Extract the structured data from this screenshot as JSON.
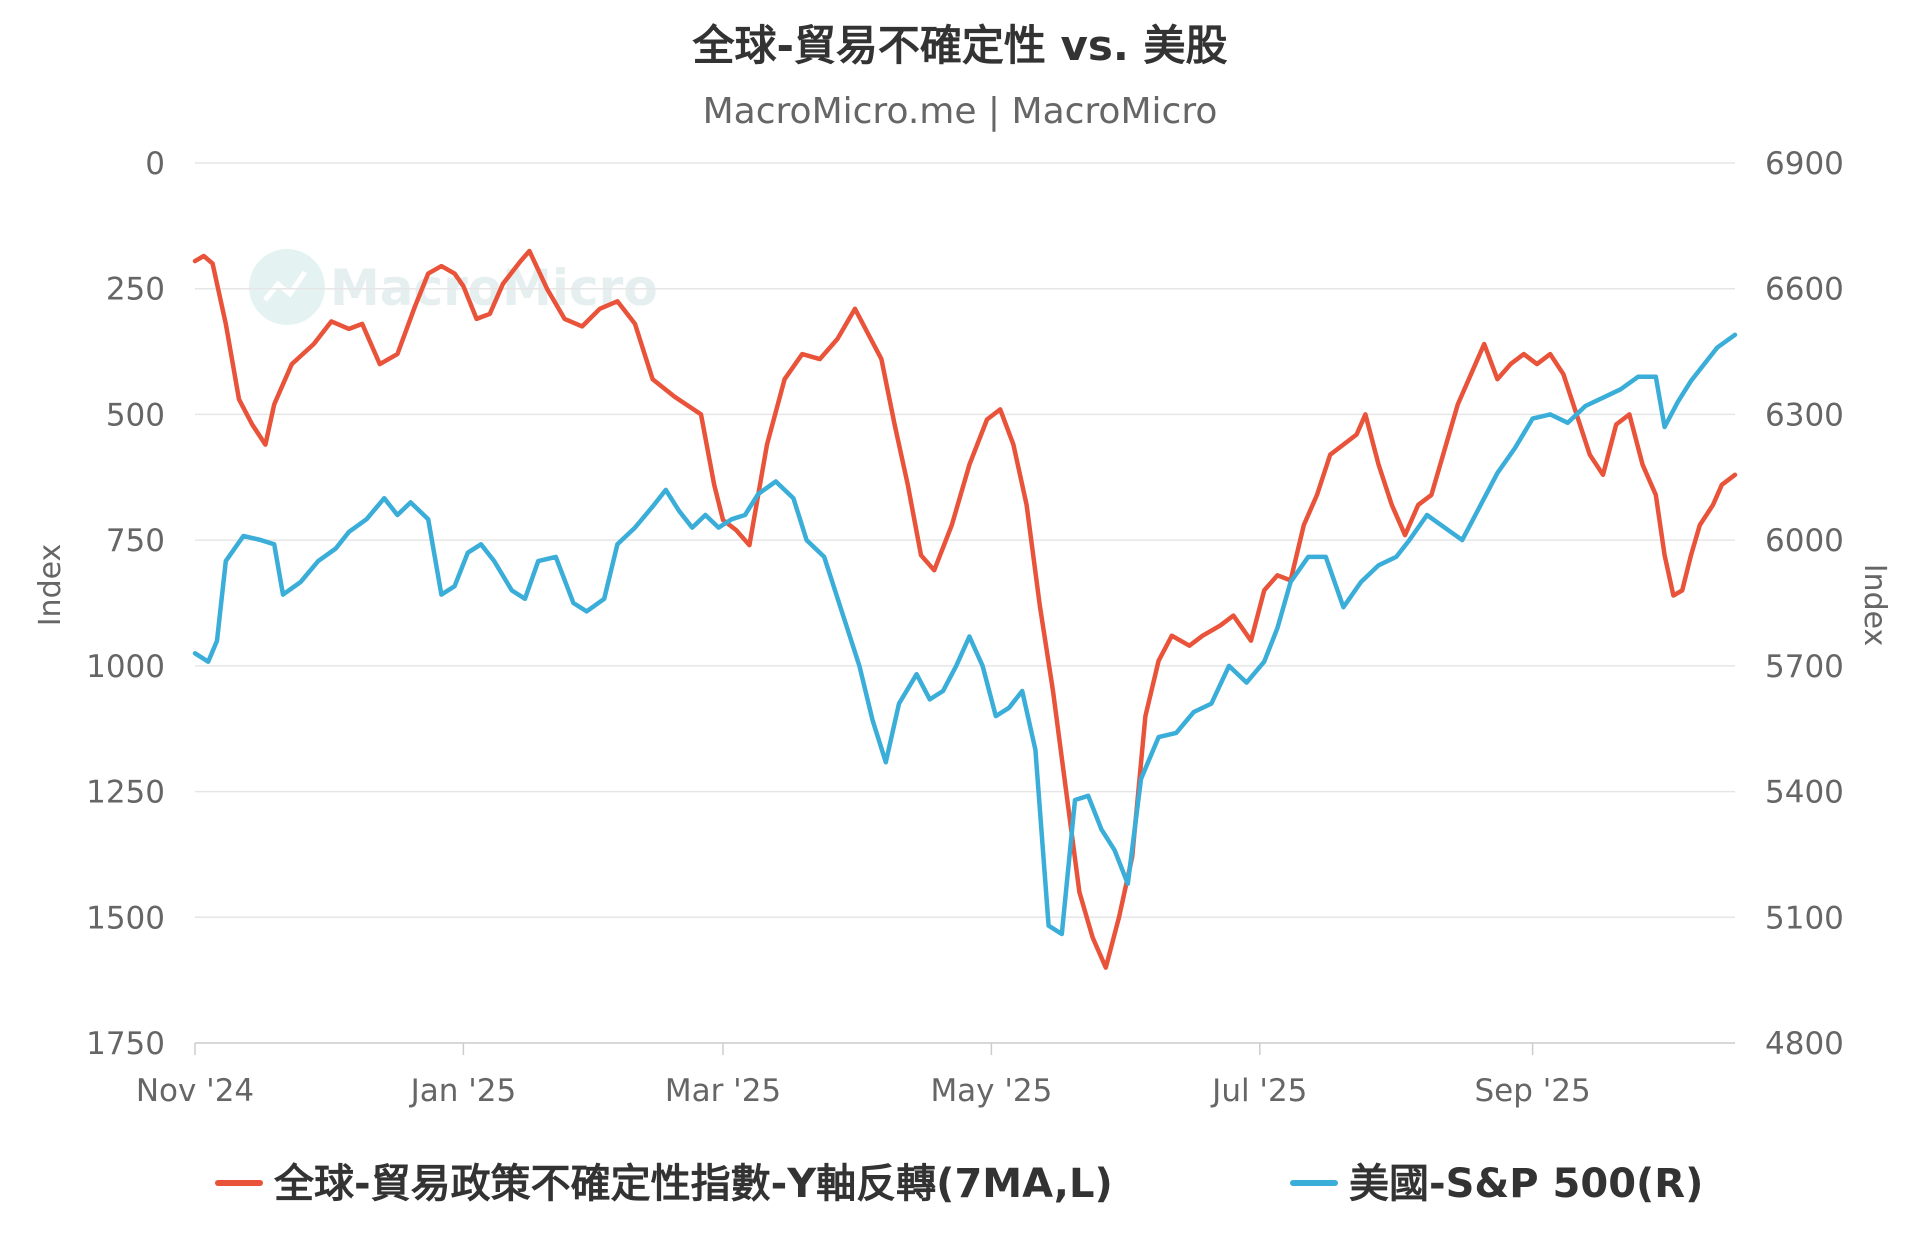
{
  "chart_data": {
    "type": "line",
    "title": "全球-貿易不確定性 vs. 美股",
    "subtitle": "MacroMicro.me | MacroMicro",
    "watermark": "MacroMicro",
    "x_tick_labels": [
      "Nov '24",
      "Jan '25",
      "Mar '25",
      "May '25",
      "Jul '25",
      "Sep '25"
    ],
    "x_tick_dates": [
      "2024-11-01",
      "2025-01-01",
      "2025-03-01",
      "2025-05-01",
      "2025-07-01",
      "2025-09-01"
    ],
    "xlim": [
      "2024-11-01",
      "2025-10-17"
    ],
    "grid": true,
    "legend_position": "bottom",
    "y_left": {
      "label": "Index",
      "reversed": true,
      "ylim": [
        0,
        1750
      ],
      "ticks": [
        "0",
        "250",
        "500",
        "750",
        "1000",
        "1250",
        "1500",
        "1750"
      ]
    },
    "y_right": {
      "label": "Index",
      "ylim": [
        4800,
        6900
      ],
      "ticks": [
        "6900",
        "6600",
        "6300",
        "6000",
        "5700",
        "5400",
        "5100",
        "4800"
      ]
    },
    "series": [
      {
        "name": "全球-貿易政策不確定性指數-Y軸反轉(7MA,L)",
        "axis": "left",
        "color": "#e8533a",
        "points": [
          [
            "2024-11-01",
            195
          ],
          [
            "2024-11-03",
            185
          ],
          [
            "2024-11-05",
            200
          ],
          [
            "2024-11-08",
            320
          ],
          [
            "2024-11-11",
            470
          ],
          [
            "2024-11-14",
            520
          ],
          [
            "2024-11-17",
            560
          ],
          [
            "2024-11-19",
            480
          ],
          [
            "2024-11-23",
            400
          ],
          [
            "2024-11-28",
            360
          ],
          [
            "2024-12-02",
            315
          ],
          [
            "2024-12-06",
            330
          ],
          [
            "2024-12-09",
            320
          ],
          [
            "2024-12-13",
            400
          ],
          [
            "2024-12-17",
            380
          ],
          [
            "2024-12-21",
            285
          ],
          [
            "2024-12-24",
            220
          ],
          [
            "2024-12-27",
            205
          ],
          [
            "2024-12-30",
            220
          ],
          [
            "2025-01-01",
            245
          ],
          [
            "2025-01-04",
            310
          ],
          [
            "2025-01-07",
            300
          ],
          [
            "2025-01-10",
            240
          ],
          [
            "2025-01-14",
            195
          ],
          [
            "2025-01-16",
            175
          ],
          [
            "2025-01-20",
            250
          ],
          [
            "2025-01-24",
            310
          ],
          [
            "2025-01-28",
            325
          ],
          [
            "2025-02-01",
            290
          ],
          [
            "2025-02-05",
            275
          ],
          [
            "2025-02-09",
            320
          ],
          [
            "2025-02-13",
            430
          ],
          [
            "2025-02-18",
            465
          ],
          [
            "2025-02-24",
            500
          ],
          [
            "2025-02-27",
            640
          ],
          [
            "2025-03-01",
            710
          ],
          [
            "2025-03-04",
            730
          ],
          [
            "2025-03-07",
            760
          ],
          [
            "2025-03-11",
            560
          ],
          [
            "2025-03-15",
            430
          ],
          [
            "2025-03-19",
            380
          ],
          [
            "2025-03-23",
            390
          ],
          [
            "2025-03-27",
            350
          ],
          [
            "2025-03-31",
            290
          ],
          [
            "2025-04-03",
            340
          ],
          [
            "2025-04-06",
            390
          ],
          [
            "2025-04-09",
            520
          ],
          [
            "2025-04-12",
            640
          ],
          [
            "2025-04-15",
            780
          ],
          [
            "2025-04-18",
            810
          ],
          [
            "2025-04-22",
            720
          ],
          [
            "2025-04-26",
            600
          ],
          [
            "2025-04-30",
            510
          ],
          [
            "2025-05-03",
            490
          ],
          [
            "2025-05-06",
            560
          ],
          [
            "2025-05-09",
            680
          ],
          [
            "2025-05-12",
            880
          ],
          [
            "2025-05-15",
            1050
          ],
          [
            "2025-05-18",
            1250
          ],
          [
            "2025-05-21",
            1450
          ],
          [
            "2025-05-24",
            1540
          ],
          [
            "2025-05-27",
            1600
          ],
          [
            "2025-05-30",
            1500
          ],
          [
            "2025-06-02",
            1380
          ],
          [
            "2025-06-05",
            1100
          ],
          [
            "2025-06-08",
            990
          ],
          [
            "2025-06-11",
            940
          ],
          [
            "2025-06-15",
            960
          ],
          [
            "2025-06-18",
            940
          ],
          [
            "2025-06-22",
            920
          ],
          [
            "2025-06-25",
            900
          ],
          [
            "2025-06-29",
            950
          ],
          [
            "2025-07-02",
            850
          ],
          [
            "2025-07-05",
            820
          ],
          [
            "2025-07-08",
            830
          ],
          [
            "2025-07-11",
            720
          ],
          [
            "2025-07-14",
            660
          ],
          [
            "2025-07-17",
            580
          ],
          [
            "2025-07-20",
            560
          ],
          [
            "2025-07-23",
            540
          ],
          [
            "2025-07-25",
            500
          ],
          [
            "2025-07-28",
            600
          ],
          [
            "2025-07-31",
            680
          ],
          [
            "2025-08-03",
            740
          ],
          [
            "2025-08-06",
            680
          ],
          [
            "2025-08-09",
            660
          ],
          [
            "2025-08-12",
            570
          ],
          [
            "2025-08-15",
            480
          ],
          [
            "2025-08-18",
            420
          ],
          [
            "2025-08-21",
            360
          ],
          [
            "2025-08-24",
            430
          ],
          [
            "2025-08-27",
            400
          ],
          [
            "2025-08-30",
            380
          ],
          [
            "2025-09-02",
            400
          ],
          [
            "2025-09-05",
            380
          ],
          [
            "2025-09-08",
            420
          ],
          [
            "2025-09-11",
            500
          ],
          [
            "2025-09-14",
            580
          ],
          [
            "2025-09-17",
            620
          ],
          [
            "2025-09-20",
            520
          ],
          [
            "2025-09-23",
            500
          ],
          [
            "2025-09-26",
            600
          ],
          [
            "2025-09-29",
            660
          ],
          [
            "2025-10-01",
            780
          ],
          [
            "2025-10-03",
            860
          ],
          [
            "2025-10-05",
            850
          ],
          [
            "2025-10-07",
            780
          ],
          [
            "2025-10-09",
            720
          ],
          [
            "2025-10-12",
            680
          ],
          [
            "2025-10-14",
            640
          ],
          [
            "2025-10-17",
            620
          ]
        ]
      },
      {
        "name": "美國-S&P 500(R)",
        "axis": "right",
        "color": "#3aaed8",
        "points": [
          [
            "2024-11-01",
            5730
          ],
          [
            "2024-11-04",
            5710
          ],
          [
            "2024-11-06",
            5760
          ],
          [
            "2024-11-08",
            5950
          ],
          [
            "2024-11-12",
            6010
          ],
          [
            "2024-11-16",
            6000
          ],
          [
            "2024-11-19",
            5990
          ],
          [
            "2024-11-21",
            5870
          ],
          [
            "2024-11-25",
            5900
          ],
          [
            "2024-11-29",
            5950
          ],
          [
            "2024-12-03",
            5980
          ],
          [
            "2024-12-06",
            6020
          ],
          [
            "2024-12-10",
            6050
          ],
          [
            "2024-12-14",
            6100
          ],
          [
            "2024-12-17",
            6060
          ],
          [
            "2024-12-20",
            6090
          ],
          [
            "2024-12-24",
            6050
          ],
          [
            "2024-12-27",
            5870
          ],
          [
            "2024-12-30",
            5890
          ],
          [
            "2025-01-02",
            5970
          ],
          [
            "2025-01-05",
            5990
          ],
          [
            "2025-01-08",
            5950
          ],
          [
            "2025-01-12",
            5880
          ],
          [
            "2025-01-15",
            5860
          ],
          [
            "2025-01-18",
            5950
          ],
          [
            "2025-01-22",
            5960
          ],
          [
            "2025-01-26",
            5850
          ],
          [
            "2025-01-29",
            5830
          ],
          [
            "2025-02-02",
            5860
          ],
          [
            "2025-02-05",
            5990
          ],
          [
            "2025-02-09",
            6030
          ],
          [
            "2025-02-13",
            6080
          ],
          [
            "2025-02-16",
            6120
          ],
          [
            "2025-02-19",
            6070
          ],
          [
            "2025-02-22",
            6030
          ],
          [
            "2025-02-25",
            6060
          ],
          [
            "2025-02-28",
            6030
          ],
          [
            "2025-03-03",
            6050
          ],
          [
            "2025-03-06",
            6060
          ],
          [
            "2025-03-09",
            6110
          ],
          [
            "2025-03-13",
            6140
          ],
          [
            "2025-03-17",
            6100
          ],
          [
            "2025-03-20",
            6000
          ],
          [
            "2025-03-24",
            5960
          ],
          [
            "2025-03-28",
            5830
          ],
          [
            "2025-04-01",
            5700
          ],
          [
            "2025-04-04",
            5570
          ],
          [
            "2025-04-07",
            5470
          ],
          [
            "2025-04-10",
            5610
          ],
          [
            "2025-04-14",
            5680
          ],
          [
            "2025-04-17",
            5620
          ],
          [
            "2025-04-20",
            5640
          ],
          [
            "2025-04-23",
            5700
          ],
          [
            "2025-04-26",
            5770
          ],
          [
            "2025-04-29",
            5700
          ],
          [
            "2025-05-02",
            5580
          ],
          [
            "2025-05-05",
            5600
          ],
          [
            "2025-05-08",
            5640
          ],
          [
            "2025-05-11",
            5500
          ],
          [
            "2025-05-14",
            5080
          ],
          [
            "2025-05-17",
            5060
          ],
          [
            "2025-05-20",
            5380
          ],
          [
            "2025-05-23",
            5390
          ],
          [
            "2025-05-26",
            5310
          ],
          [
            "2025-05-29",
            5260
          ],
          [
            "2025-06-01",
            5180
          ],
          [
            "2025-06-04",
            5430
          ],
          [
            "2025-06-08",
            5530
          ],
          [
            "2025-06-12",
            5540
          ],
          [
            "2025-06-16",
            5590
          ],
          [
            "2025-06-20",
            5610
          ],
          [
            "2025-06-24",
            5700
          ],
          [
            "2025-06-28",
            5660
          ],
          [
            "2025-07-02",
            5710
          ],
          [
            "2025-07-05",
            5790
          ],
          [
            "2025-07-08",
            5900
          ],
          [
            "2025-07-12",
            5960
          ],
          [
            "2025-07-16",
            5960
          ],
          [
            "2025-07-20",
            5840
          ],
          [
            "2025-07-24",
            5900
          ],
          [
            "2025-07-28",
            5940
          ],
          [
            "2025-08-01",
            5960
          ],
          [
            "2025-08-04",
            6000
          ],
          [
            "2025-08-08",
            6060
          ],
          [
            "2025-08-12",
            6030
          ],
          [
            "2025-08-16",
            6000
          ],
          [
            "2025-08-20",
            6080
          ],
          [
            "2025-08-24",
            6160
          ],
          [
            "2025-08-28",
            6220
          ],
          [
            "2025-09-01",
            6290
          ],
          [
            "2025-09-05",
            6300
          ],
          [
            "2025-09-09",
            6280
          ],
          [
            "2025-09-13",
            6320
          ],
          [
            "2025-09-17",
            6340
          ],
          [
            "2025-09-21",
            6360
          ],
          [
            "2025-09-25",
            6390
          ],
          [
            "2025-09-29",
            6390
          ],
          [
            "2025-10-01",
            6270
          ],
          [
            "2025-10-04",
            6330
          ],
          [
            "2025-10-07",
            6380
          ],
          [
            "2025-10-10",
            6420
          ],
          [
            "2025-10-13",
            6460
          ],
          [
            "2025-10-17",
            6490
          ]
        ]
      }
    ]
  }
}
